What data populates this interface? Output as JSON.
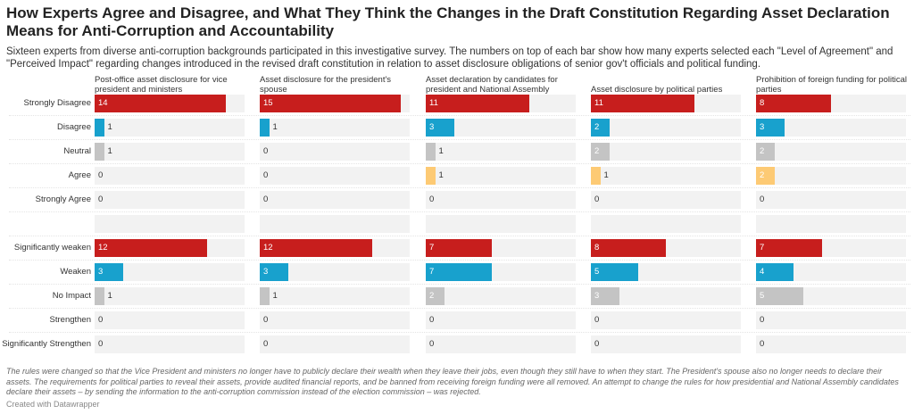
{
  "title": "How Experts Agree and Disagree, and What They Think the Changes in the Draft Constitution Regarding Asset Declaration Means for Anti-Corruption and Accountability",
  "subtitle": "Sixteen experts from diverse anti-corruption backgrounds participated in this investigative survey. The numbers on top of each bar show how many experts selected each \"Level of Agreement\" and \"Perceived Impact\" regarding changes introduced in the revised draft constitution in relation to asset disclosure obligations of senior gov't officials and political funding.",
  "notes": "The rules were changed so that the Vice President and ministers no longer have to publicly declare their wealth when they leave their jobs, even though they still have to when they start. The President's spouse also no longer needs to declare their assets. The requirements for political parties to reveal their assets, provide audited financial reports, and be banned from receiving foreign funding were all removed. An attempt to change the rules for how presidential and National Assembly candidates declare their assets – by sending the information to the anti-corruption commission instead of the election commission – was rejected.",
  "credit": "Created with Datawrapper",
  "chart_data": {
    "type": "bar",
    "orientation": "horizontal",
    "xlim": [
      0,
      16
    ],
    "columns": [
      "Post-office asset disclosure for vice president and ministers",
      "Asset disclosure for the president's spouse",
      "Asset declaration by candidates for president and National Assembly",
      "Asset disclosure by political parties",
      "Prohibition of foreign funding for political parties"
    ],
    "categories": [
      "Strongly Disagree",
      "Disagree",
      "Neutral",
      "Agree",
      "Strongly Agree",
      "",
      "Significantly weaken",
      "Weaken",
      "No Impact",
      "Strengthen",
      "Significantly Strengthen"
    ],
    "category_colors": [
      "#c71e1d",
      "#18a1cd",
      "#c4c4c4",
      "#fdca74",
      "#c4c4c4",
      "#c4c4c4",
      "#c71e1d",
      "#18a1cd",
      "#c4c4c4",
      "#c4c4c4",
      "#c4c4c4"
    ],
    "values": [
      [
        14,
        1,
        1,
        0,
        0,
        null,
        12,
        3,
        1,
        0,
        0
      ],
      [
        15,
        1,
        0,
        0,
        0,
        null,
        12,
        3,
        1,
        0,
        0
      ],
      [
        11,
        3,
        1,
        1,
        0,
        null,
        7,
        7,
        2,
        0,
        0
      ],
      [
        11,
        2,
        2,
        1,
        0,
        null,
        8,
        5,
        3,
        0,
        0
      ],
      [
        8,
        3,
        2,
        2,
        0,
        null,
        7,
        4,
        5,
        0,
        0
      ]
    ]
  }
}
